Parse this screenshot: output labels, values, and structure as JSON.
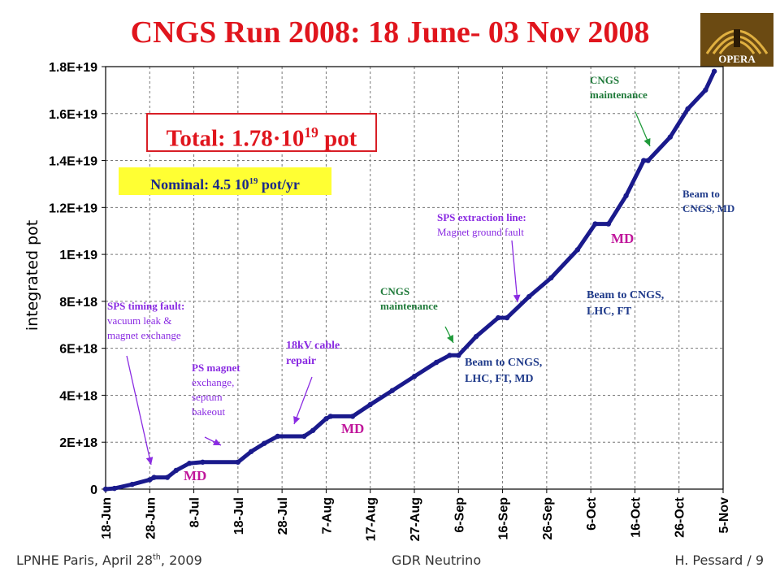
{
  "title": "CNGS Run 2008: 18 June- 03 Nov 2008",
  "logo": {
    "text": "OPERA",
    "icon": "opera-logo-icon"
  },
  "total": {
    "prefix": "Total: 1.78·10",
    "exp": "19",
    "suffix": " pot"
  },
  "nominal": {
    "prefix": "Nominal: 4.5 10",
    "exp": "19",
    "suffix": " pot/yr"
  },
  "annotations": {
    "sps_timing_title": "SPS timing fault:",
    "sps_timing_body1": "vacuum leak &",
    "sps_timing_body2": "magnet exchange",
    "ps_magnet_1": "PS magnet",
    "ps_magnet_2": "exchange,",
    "ps_magnet_3": "septum",
    "ps_magnet_4": "bakeout",
    "kv_cable_1": "18kV cable",
    "kv_cable_2": "repair",
    "cngs_maint_mid_1": "CNGS",
    "cngs_maint_mid_2": "maintenance",
    "sps_extraction_title": "SPS extraction line:",
    "sps_extraction_body": "Magnet ground fault",
    "beam_cngs_lhc_ft_md_1": "Beam to CNGS,",
    "beam_cngs_lhc_ft_md_2": "LHC, FT, MD",
    "beam_cngs_lhc_ft_1": "Beam to CNGS,",
    "beam_cngs_lhc_ft_2": "LHC, FT",
    "cngs_maint_top_1": "CNGS",
    "cngs_maint_top_2": "maintenance",
    "beam_cngs_md_1": "Beam to",
    "beam_cngs_md_2": "CNGS, MD",
    "md_1": "MD",
    "md_2": "MD",
    "md_3": "MD"
  },
  "footer": {
    "left": "LPNHE Paris, April 28",
    "left_sup": "th",
    "left_suffix": ", 2009",
    "middle": "GDR Neutrino",
    "right": "H. Pessard / 9"
  },
  "colors": {
    "title": "#e0151d",
    "series": "#1a1a8c",
    "grid": "#777777",
    "arrow_purple": "#8a2be2",
    "arrow_green": "#1f9a3a"
  },
  "chart_data": {
    "type": "line",
    "title": "",
    "xlabel": "",
    "ylabel": "integrated pot",
    "x_ticks": [
      "18-Jun",
      "28-Jun",
      "8-Jul",
      "18-Jul",
      "28-Jul",
      "7-Aug",
      "17-Aug",
      "27-Aug",
      "6-Sep",
      "16-Sep",
      "26-Sep",
      "6-Oct",
      "16-Oct",
      "26-Oct",
      "5-Nov"
    ],
    "y_ticks": [
      "0",
      "2E+18",
      "4E+18",
      "6E+18",
      "8E+18",
      "1E+19",
      "1.2E+19",
      "1.4E+19",
      "1.6E+19",
      "1.8E+19"
    ],
    "ylim": [
      0,
      1.8e+19
    ],
    "grid": true,
    "series": [
      {
        "name": "",
        "points": [
          {
            "x": "2008-06-18",
            "y": 0.0
          },
          {
            "x": "2008-06-20",
            "y": 3e+16
          },
          {
            "x": "2008-06-24",
            "y": 2e+17
          },
          {
            "x": "2008-06-28",
            "y": 4e+17
          },
          {
            "x": "2008-06-29",
            "y": 5e+17
          },
          {
            "x": "2008-07-02",
            "y": 5e+17
          },
          {
            "x": "2008-07-04",
            "y": 8e+17
          },
          {
            "x": "2008-07-07",
            "y": 1.1e+18
          },
          {
            "x": "2008-07-10",
            "y": 1.15e+18
          },
          {
            "x": "2008-07-18",
            "y": 1.15e+18
          },
          {
            "x": "2008-07-21",
            "y": 1.6e+18
          },
          {
            "x": "2008-07-24",
            "y": 1.95e+18
          },
          {
            "x": "2008-07-27",
            "y": 2.25e+18
          },
          {
            "x": "2008-08-02",
            "y": 2.25e+18
          },
          {
            "x": "2008-08-04",
            "y": 2.5e+18
          },
          {
            "x": "2008-08-07",
            "y": 3e+18
          },
          {
            "x": "2008-08-08",
            "y": 3.1e+18
          },
          {
            "x": "2008-08-13",
            "y": 3.1e+18
          },
          {
            "x": "2008-08-17",
            "y": 3.6e+18
          },
          {
            "x": "2008-08-22",
            "y": 4.2e+18
          },
          {
            "x": "2008-08-27",
            "y": 4.8e+18
          },
          {
            "x": "2008-09-01",
            "y": 5.4e+18
          },
          {
            "x": "2008-09-04",
            "y": 5.7e+18
          },
          {
            "x": "2008-09-06",
            "y": 5.7e+18
          },
          {
            "x": "2008-09-10",
            "y": 6.5e+18
          },
          {
            "x": "2008-09-15",
            "y": 7.3e+18
          },
          {
            "x": "2008-09-17",
            "y": 7.3e+18
          },
          {
            "x": "2008-09-22",
            "y": 8.2e+18
          },
          {
            "x": "2008-09-27",
            "y": 9e+18
          },
          {
            "x": "2008-10-03",
            "y": 1.02e+19
          },
          {
            "x": "2008-10-07",
            "y": 1.13e+19
          },
          {
            "x": "2008-10-10",
            "y": 1.13e+19
          },
          {
            "x": "2008-10-14",
            "y": 1.25e+19
          },
          {
            "x": "2008-10-18",
            "y": 1.4e+19
          },
          {
            "x": "2008-10-19",
            "y": 1.4e+19
          },
          {
            "x": "2008-10-24",
            "y": 1.5e+19
          },
          {
            "x": "2008-10-28",
            "y": 1.62e+19
          },
          {
            "x": "2008-11-01",
            "y": 1.7e+19
          },
          {
            "x": "2008-11-03",
            "y": 1.78e+19
          }
        ]
      }
    ]
  }
}
